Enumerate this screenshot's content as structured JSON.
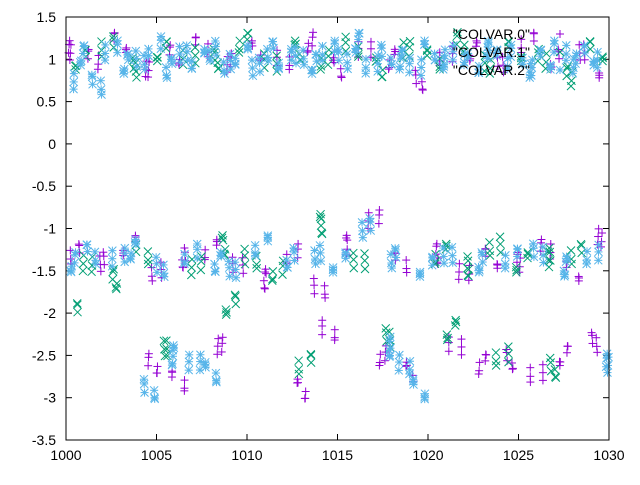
{
  "chart_data": {
    "type": "scatter",
    "title": "",
    "xlabel": "",
    "ylabel": "",
    "xlim": [
      1000,
      1030
    ],
    "ylim": [
      -3.5,
      1.5
    ],
    "xticks": [
      "1000",
      "1005",
      "1010",
      "1015",
      "1020",
      "1025",
      "1030"
    ],
    "yticks": [
      "1.5",
      "1",
      "0.5",
      "0",
      "-0.5",
      "-1",
      "-1.5",
      "-2",
      "-2.5",
      "-3",
      "-3.5"
    ],
    "grid": false,
    "legend_position": "top-right",
    "series": [
      {
        "name": "\"COLVAR.0\"",
        "color": "#9400d3",
        "marker": "plus",
        "x": [
          1000.2,
          1001.5,
          1003,
          1004.5,
          1006,
          1007.5,
          1009,
          1010.5,
          1012,
          1013.5,
          1015,
          1016.5,
          1018,
          1019.5,
          1021,
          1022.5,
          1024,
          1025.5,
          1027,
          1028.5,
          1029.8,
          1000.5,
          1002,
          1003.5,
          1005,
          1006.5,
          1008,
          1009.5,
          1011,
          1012.5,
          1014,
          1015.5,
          1017,
          1018.5,
          1020.5,
          1022,
          1023.5,
          1025,
          1026.5,
          1028,
          1029.5,
          1004.8,
          1006.2,
          1008.5,
          1013,
          1014.5,
          1017.5,
          1019,
          1021.5,
          1023,
          1024.5,
          1026,
          1027.5,
          1029.2
        ],
        "y": [
          1.1,
          1.0,
          1.2,
          0.9,
          1.05,
          1.15,
          0.95,
          1.1,
          1.0,
          1.2,
          0.9,
          1.1,
          1.0,
          0.75,
          1.05,
          1.1,
          0.95,
          1.2,
          1.0,
          1.1,
          0.9,
          -1.3,
          -1.4,
          -1.2,
          -1.5,
          -1.35,
          -1.25,
          -1.45,
          -1.6,
          -1.3,
          -1.7,
          -1.2,
          -0.9,
          -1.4,
          -1.3,
          -1.5,
          -1.35,
          -1.4,
          -1.25,
          -1.5,
          -1.1,
          -2.6,
          -2.8,
          -2.4,
          -2.9,
          -2.2,
          -2.5,
          -2.7,
          -2.4,
          -2.6,
          -2.55,
          -2.7,
          -2.5,
          -2.35
        ]
      },
      {
        "name": "\"COLVAR.1\"",
        "color": "#009e73",
        "marker": "cross",
        "x": [
          1000.8,
          1002.3,
          1003.8,
          1005.3,
          1006.8,
          1008.3,
          1009.8,
          1011.3,
          1012.8,
          1014.3,
          1015.8,
          1017.3,
          1018.8,
          1020.3,
          1021.8,
          1023.3,
          1024.8,
          1026.3,
          1027.8,
          1029.3,
          1001.2,
          1002.7,
          1004.2,
          1007.2,
          1008.7,
          1010.2,
          1011.7,
          1014.1,
          1016.2,
          1020.7,
          1022.2,
          1023.7,
          1025.2,
          1026.7,
          1028.2,
          1000.3,
          1005.5,
          1009.1,
          1013.2,
          1017.8,
          1021.3,
          1024.1,
          1026.9
        ],
        "y": [
          1.0,
          1.15,
          0.9,
          1.1,
          1.05,
          1.0,
          1.2,
          0.95,
          1.1,
          1.0,
          1.15,
          0.9,
          1.1,
          1.0,
          1.2,
          0.95,
          1.1,
          1.0,
          0.8,
          1.1,
          -1.4,
          -1.6,
          -1.3,
          -1.45,
          -1.2,
          -1.35,
          -1.5,
          -0.95,
          -1.4,
          -1.3,
          -1.45,
          -1.2,
          -1.4,
          -1.35,
          -1.3,
          -2.0,
          -2.4,
          -1.9,
          -2.6,
          -2.3,
          -2.2,
          -2.5,
          -2.65
        ]
      },
      {
        "name": "\"COLVAR.2\"",
        "color": "#56b4e9",
        "marker": "star",
        "x": [
          1000.1,
          1000.9,
          1001.7,
          1002.5,
          1003.3,
          1004.1,
          1004.9,
          1005.7,
          1006.5,
          1007.3,
          1008.1,
          1008.9,
          1009.7,
          1010.5,
          1011.3,
          1012.1,
          1012.9,
          1013.7,
          1014.5,
          1015.3,
          1016.1,
          1016.9,
          1017.7,
          1018.5,
          1019.3,
          1020.1,
          1020.9,
          1021.7,
          1022.5,
          1023.3,
          1024.1,
          1024.9,
          1025.7,
          1026.5,
          1027.3,
          1028.1,
          1028.9,
          1029.7,
          1000.4,
          1001.4,
          1002.9,
          1003.7,
          1005.2,
          1006.9,
          1008.4,
          1009.2,
          1010.8,
          1012.4,
          1013.9,
          1015.1,
          1016.6,
          1018.1,
          1019.9,
          1021.1,
          1022.9,
          1024.6,
          1026.1,
          1027.6,
          1029.1,
          1004.6,
          1005.9,
          1007.1,
          1008.0,
          1017.9,
          1018.7,
          1019.5,
          1029.9
        ],
        "y": [
          0.75,
          1.05,
          0.7,
          1.1,
          0.95,
          1.0,
          1.15,
          0.9,
          1.05,
          1.0,
          1.1,
          0.95,
          1.05,
          0.9,
          1.1,
          1.0,
          1.05,
          0.95,
          1.1,
          1.0,
          1.2,
          0.95,
          1.05,
          1.0,
          0.9,
          1.1,
          1.0,
          1.05,
          0.95,
          1.1,
          1.0,
          1.05,
          0.9,
          1.0,
          1.1,
          0.95,
          1.05,
          1.0,
          -1.4,
          -1.3,
          -1.35,
          -1.25,
          -1.45,
          -1.3,
          -1.4,
          -1.5,
          -1.2,
          -1.35,
          -1.3,
          -1.4,
          -1.0,
          -1.35,
          -1.45,
          -1.3,
          -1.4,
          -1.35,
          -1.3,
          -1.45,
          -1.3,
          -2.9,
          -2.5,
          -2.6,
          -2.7,
          -2.4,
          -2.6,
          -2.9,
          -2.6
        ]
      }
    ]
  }
}
